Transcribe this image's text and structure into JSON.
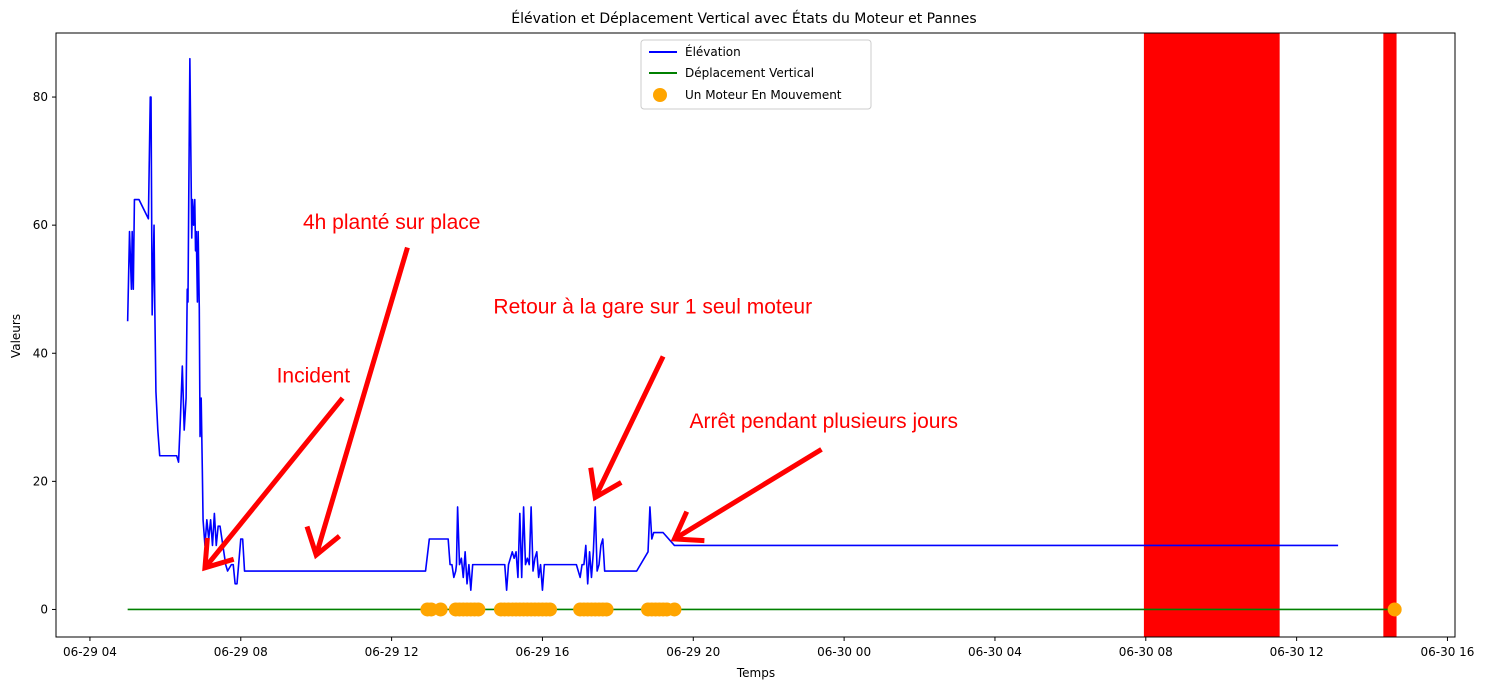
{
  "chart_data": {
    "type": "line",
    "title": "Élévation et Déplacement Vertical avec États du Moteur et Pannes",
    "xlabel": "Temps",
    "ylabel": "Valeurs",
    "x_unit": "hours since 06-29 00:00",
    "xlim": [
      3.1,
      40.2
    ],
    "ylim": [
      -4.3,
      90
    ],
    "x_ticks": [
      {
        "value": 4,
        "label": "06-29 04"
      },
      {
        "value": 8,
        "label": "06-29 08"
      },
      {
        "value": 12,
        "label": "06-29 12"
      },
      {
        "value": 16,
        "label": "06-29 16"
      },
      {
        "value": 20,
        "label": "06-29 20"
      },
      {
        "value": 24,
        "label": "06-30 00"
      },
      {
        "value": 28,
        "label": "06-30 04"
      },
      {
        "value": 32,
        "label": "06-30 08"
      },
      {
        "value": 36,
        "label": "06-30 12"
      },
      {
        "value": 40,
        "label": "06-30 16"
      }
    ],
    "y_ticks": [
      {
        "value": 0,
        "label": "0"
      },
      {
        "value": 20,
        "label": "20"
      },
      {
        "value": 40,
        "label": "40"
      },
      {
        "value": 60,
        "label": "60"
      },
      {
        "value": 80,
        "label": "80"
      }
    ],
    "grid": false,
    "legend_position": "top-center",
    "series": [
      {
        "name": "Élévation",
        "type": "line",
        "color": "#0000ff",
        "x": [
          5.0,
          5.05,
          5.1,
          5.12,
          5.15,
          5.18,
          5.2,
          5.25,
          5.3,
          5.55,
          5.6,
          5.62,
          5.65,
          5.7,
          5.72,
          5.75,
          5.8,
          5.85,
          5.9,
          5.95,
          6.0,
          6.3,
          6.35,
          6.4,
          6.45,
          6.5,
          6.55,
          6.58,
          6.6,
          6.62,
          6.65,
          6.7,
          6.72,
          6.75,
          6.78,
          6.8,
          6.82,
          6.85,
          6.87,
          6.9,
          6.92,
          6.95,
          6.98,
          7.0,
          7.05,
          7.1,
          7.15,
          7.2,
          7.25,
          7.3,
          7.35,
          7.4,
          7.45,
          7.6,
          7.65,
          7.75,
          7.8,
          7.85,
          7.9,
          8.0,
          8.05,
          8.1,
          12.9,
          13.0,
          13.1,
          13.5,
          13.55,
          13.6,
          13.65,
          13.7,
          13.72,
          13.75,
          13.8,
          13.85,
          13.9,
          13.95,
          14.0,
          14.05,
          14.1,
          14.15,
          14.2,
          14.3,
          14.6,
          15.0,
          15.05,
          15.1,
          15.15,
          15.2,
          15.25,
          15.3,
          15.35,
          15.4,
          15.45,
          15.5,
          15.55,
          15.6,
          15.65,
          15.7,
          15.75,
          15.8,
          15.85,
          15.9,
          15.95,
          16.0,
          16.05,
          16.1,
          16.15,
          16.2,
          16.3,
          16.5,
          16.9,
          17.0,
          17.05,
          17.1,
          17.15,
          17.2,
          17.25,
          17.3,
          17.35,
          17.4,
          17.45,
          17.5,
          17.55,
          17.6,
          17.65,
          17.7,
          17.75,
          17.8,
          17.9,
          18.2,
          18.5,
          18.8,
          18.85,
          18.9,
          18.95,
          19.0,
          19.05,
          19.1,
          19.2,
          19.5,
          19.55,
          19.6,
          21.0,
          24.0,
          30.0,
          36.0,
          37.1
        ],
        "y": [
          45,
          59,
          50,
          59,
          50,
          64,
          64,
          64,
          64,
          61,
          80,
          80,
          46,
          60,
          47,
          34,
          28,
          24,
          24,
          24,
          24,
          24,
          23,
          30,
          38,
          28,
          33,
          50,
          48,
          64,
          86,
          58,
          64,
          60,
          64,
          56,
          59,
          48,
          59,
          47,
          27,
          33,
          22,
          14,
          10,
          14,
          11,
          14,
          10,
          15,
          10,
          13,
          13,
          7,
          6,
          7,
          7,
          4,
          4,
          11,
          11,
          6,
          6,
          11,
          11,
          11,
          7,
          7,
          5,
          6,
          7,
          16,
          7,
          8,
          5,
          9,
          4,
          7,
          3,
          7,
          7,
          7,
          7,
          7,
          3,
          7,
          8,
          9,
          8,
          9,
          5,
          15,
          5,
          16,
          7,
          8,
          7,
          16,
          6,
          8,
          9,
          5,
          7,
          3,
          7,
          7,
          7,
          7,
          7,
          7,
          7,
          5,
          7,
          7,
          10,
          4,
          9,
          5,
          9,
          16,
          6,
          7,
          10,
          11,
          6,
          6,
          6,
          6,
          6,
          6,
          6,
          9,
          16,
          11,
          12,
          12,
          12,
          12,
          12,
          10,
          10,
          10,
          10,
          10,
          10,
          10,
          10
        ]
      },
      {
        "name": "Déplacement Vertical",
        "type": "line",
        "color": "#008000",
        "x": [
          5.0,
          38.6
        ],
        "y": [
          0,
          0
        ]
      },
      {
        "name": "Un Moteur En Mouvement",
        "type": "scatter",
        "color": "#ffa500",
        "x": [
          12.95,
          13.05,
          13.3,
          13.7,
          13.8,
          13.9,
          14.0,
          14.1,
          14.2,
          14.3,
          14.9,
          15.0,
          15.1,
          15.2,
          15.3,
          15.4,
          15.5,
          15.6,
          15.7,
          15.8,
          15.9,
          16.0,
          16.1,
          16.2,
          17.0,
          17.1,
          17.2,
          17.3,
          17.4,
          17.5,
          17.6,
          17.7,
          18.8,
          18.9,
          19.0,
          19.1,
          19.2,
          19.3,
          19.5,
          38.6
        ],
        "y": [
          0,
          0,
          0,
          0,
          0,
          0,
          0,
          0,
          0,
          0,
          0,
          0,
          0,
          0,
          0,
          0,
          0,
          0,
          0,
          0,
          0,
          0,
          0,
          0,
          0,
          0,
          0,
          0,
          0,
          0,
          0,
          0,
          0,
          0,
          0,
          0,
          0,
          0,
          0,
          0
        ]
      }
    ],
    "fault_spans": [
      {
        "color": "#ff0000",
        "x_start": 31.95,
        "x_end": 35.55
      },
      {
        "color": "#ff0000",
        "x_start": 38.3,
        "x_end": 38.65
      }
    ],
    "annotations": [
      {
        "text": "4h planté sur place",
        "text_x": 9.65,
        "text_y": 59.4,
        "arrow_from": [
          12.42,
          56.5
        ],
        "arrow_to": [
          10.0,
          8.5
        ]
      },
      {
        "text": "Incident",
        "text_x": 8.95,
        "text_y": 35.4,
        "arrow_from": [
          10.7,
          33.0
        ],
        "arrow_to": [
          7.05,
          6.5
        ]
      },
      {
        "text": "Retour à la gare sur 1 seul moteur",
        "text_x": 14.7,
        "text_y": 46.2,
        "arrow_from": [
          19.2,
          39.5
        ],
        "arrow_to": [
          17.4,
          17.5
        ]
      },
      {
        "text": "Arrêt pendant plusieurs jours",
        "text_x": 19.9,
        "text_y": 28.3,
        "arrow_from": [
          23.4,
          25.0
        ],
        "arrow_to": [
          19.5,
          11.0
        ]
      }
    ]
  }
}
